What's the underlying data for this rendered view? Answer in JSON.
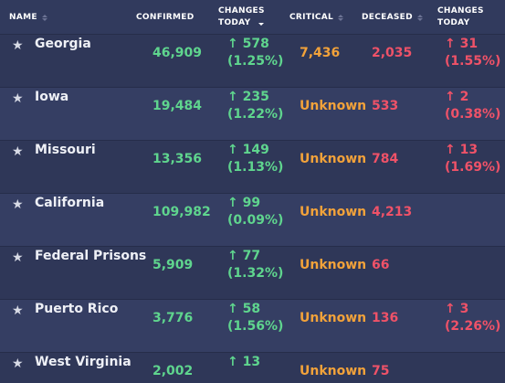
{
  "columns": {
    "name": "NAME",
    "confirmed": "CONFIRMED",
    "changes_today_1": "CHANGES",
    "changes_today_2": "TODAY",
    "critical": "CRITICAL",
    "deceased": "DECEASED",
    "deaths_changes_1": "CHANGES",
    "deaths_changes_2": "TODAY"
  },
  "arrow": "↑",
  "star": "★",
  "rows": [
    {
      "name": "Georgia",
      "confirmed": "46,909",
      "change": "578",
      "change_pct": "(1.25%)",
      "critical": "7,436",
      "deceased": "2,035",
      "d_change": "31",
      "d_change_pct": "(1.55%)"
    },
    {
      "name": "Iowa",
      "confirmed": "19,484",
      "change": "235",
      "change_pct": "(1.22%)",
      "critical": "Unknown",
      "deceased": "533",
      "d_change": "2",
      "d_change_pct": "(0.38%)"
    },
    {
      "name": "Missouri",
      "confirmed": "13,356",
      "change": "149",
      "change_pct": "(1.13%)",
      "critical": "Unknown",
      "deceased": "784",
      "d_change": "13",
      "d_change_pct": "(1.69%)"
    },
    {
      "name": "California",
      "confirmed": "109,982",
      "change": "99",
      "change_pct": "(0.09%)",
      "critical": "Unknown",
      "deceased": "4,213",
      "d_change": "",
      "d_change_pct": ""
    },
    {
      "name": "Federal Prisons",
      "confirmed": "5,909",
      "change": "77",
      "change_pct": "(1.32%)",
      "critical": "Unknown",
      "deceased": "66",
      "d_change": "",
      "d_change_pct": ""
    },
    {
      "name": "Puerto Rico",
      "confirmed": "3,776",
      "change": "58",
      "change_pct": "(1.56%)",
      "critical": "Unknown",
      "deceased": "136",
      "d_change": "3",
      "d_change_pct": "(2.26%)"
    },
    {
      "name": "West Virginia",
      "confirmed": "2,002",
      "change": "13",
      "change_pct": "",
      "critical": "Unknown",
      "deceased": "75",
      "d_change": "",
      "d_change_pct": ""
    }
  ]
}
